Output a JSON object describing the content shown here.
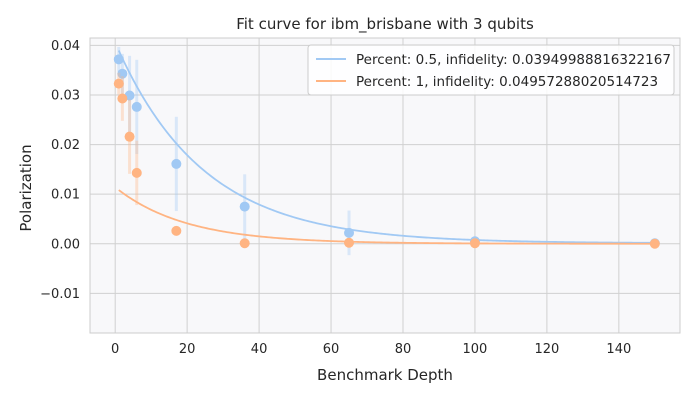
{
  "chart_data": {
    "type": "scatter",
    "title": "Fit curve for ibm_brisbane with 3 qubits",
    "xlabel": "Benchmark Depth",
    "ylabel": "Polarization",
    "xlim": [
      -7,
      157
    ],
    "ylim": [
      -0.018,
      0.0415
    ],
    "x_ticks": [
      0,
      20,
      40,
      60,
      80,
      100,
      120,
      140
    ],
    "x_tick_labels": [
      "0",
      "20",
      "40",
      "60",
      "80",
      "100",
      "120",
      "140"
    ],
    "y_ticks": [
      -0.01,
      0.0,
      0.01,
      0.02,
      0.03,
      0.04
    ],
    "y_tick_labels": [
      "−0.01",
      "0.00",
      "0.01",
      "0.02",
      "0.03",
      "0.04"
    ],
    "grid": true,
    "legend_position": "top-right",
    "series": [
      {
        "name": "Percent: 0.5, infidelity: 0.03949988816322167",
        "color": "#a1c9f4",
        "x": [
          1,
          2,
          4,
          6,
          17,
          36,
          65,
          100,
          150
        ],
        "y": [
          0.0372,
          0.0343,
          0.0299,
          0.0276,
          0.0161,
          0.0075,
          0.0022,
          0.0005,
          0.0001
        ],
        "err": [
          0.0025,
          0.004,
          0.008,
          0.0095,
          0.0095,
          0.0065,
          0.0045,
          0.0,
          0.0
        ],
        "fit": {
          "a": 0.0405,
          "r": 0.9597,
          "b": 0.0001
        }
      },
      {
        "name": "Percent: 1, infidelity: 0.04957288020514723",
        "color": "#ffb482",
        "x": [
          1,
          2,
          4,
          6,
          17,
          36,
          65,
          100,
          150
        ],
        "y": [
          0.0323,
          0.0293,
          0.0216,
          0.0143,
          0.0026,
          0.0001,
          0.0002,
          0.0001,
          0.0
        ],
        "err": [
          0.0022,
          0.0045,
          0.0075,
          0.0065,
          0.0,
          0.0,
          0.0,
          0.0,
          0.0
        ],
        "fit": {
          "a": 0.0114,
          "r": 0.9504,
          "b": 0.0
        }
      }
    ]
  }
}
